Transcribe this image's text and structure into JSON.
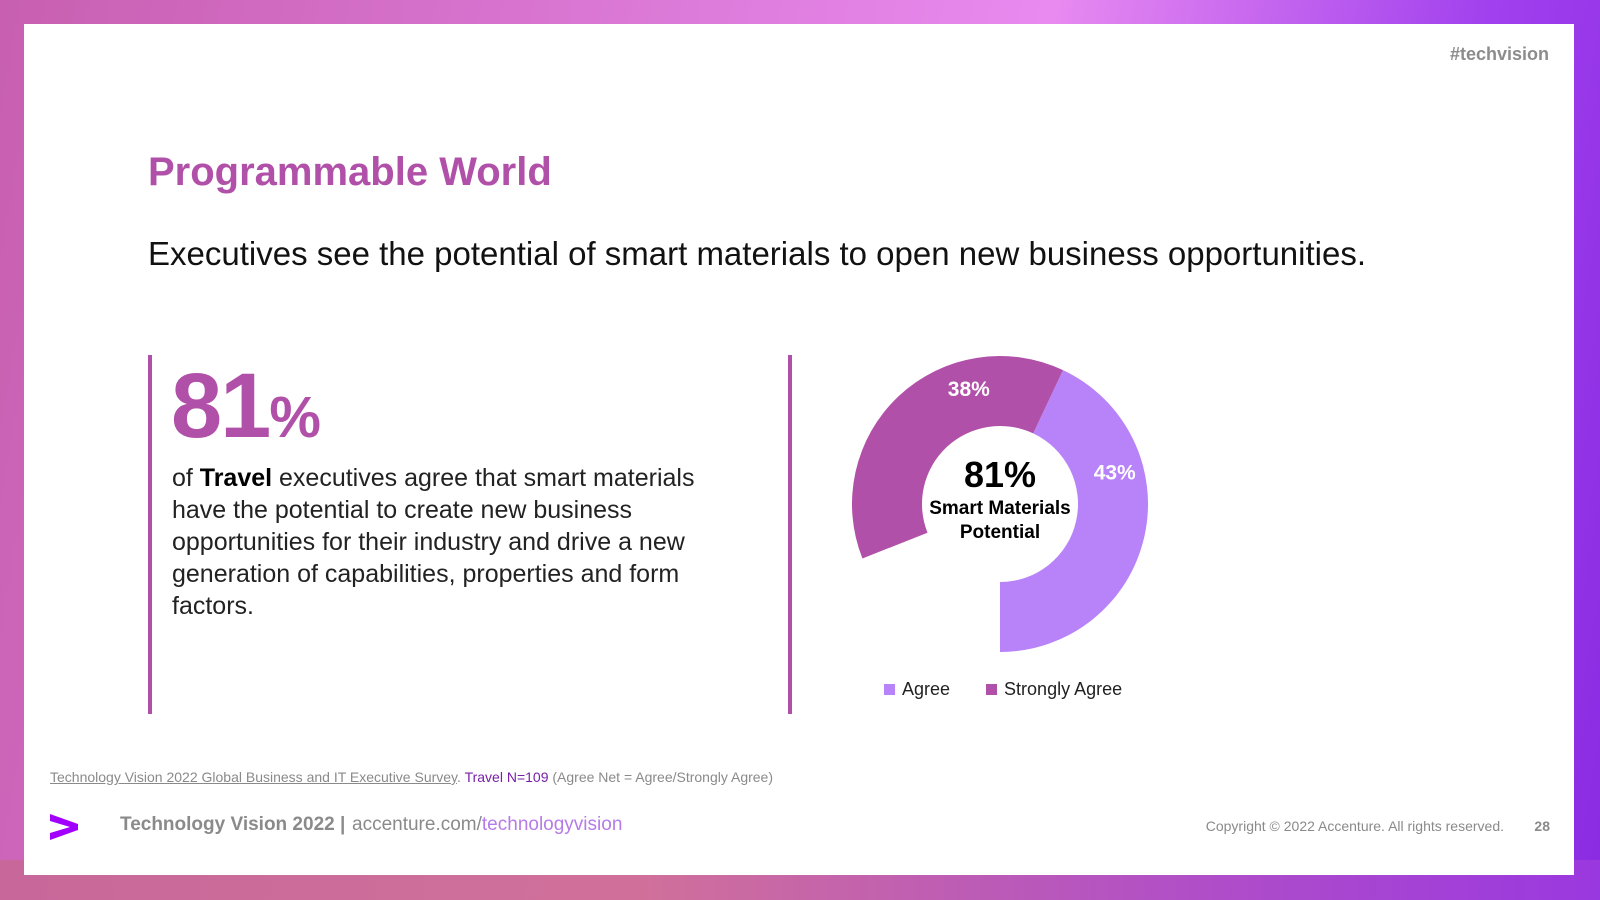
{
  "header": {
    "hashtag": "#techvision"
  },
  "title": "Programmable World",
  "subtitle": "Executives see the potential of smart materials to open new business opportunities.",
  "stat": {
    "value": "81",
    "unit": "%",
    "text_prefix": "of ",
    "industry": "Travel",
    "text_rest": " executives agree that smart materials have the potential to create new business opportunities for their industry and drive a new generation of capabilities, properties and form factors."
  },
  "chart_data": {
    "type": "pie",
    "donut": true,
    "center_value": "81%",
    "center_label_line1": "Smart Materials",
    "center_label_line2": "Potential",
    "start_angle_deg": 180,
    "slices": [
      {
        "name": "Agree",
        "value": 43,
        "label": "43%",
        "color": "#b882f8"
      },
      {
        "name": "Strongly Agree",
        "value": 38,
        "label": "38%",
        "color": "#b150a8"
      }
    ],
    "legend": [
      {
        "name": "Agree",
        "color": "#b882f8"
      },
      {
        "name": "Strongly Agree",
        "color": "#b150a8"
      }
    ]
  },
  "source": {
    "survey": "Technology Vision 2022 Global Business and IT Executive Survey",
    "separator": ". ",
    "sample": "Travel N=109",
    "note": " (Agree Net = Agree/Strongly Agree)"
  },
  "footer": {
    "logo_icon": "accenture-chevron-icon",
    "brand": "Technology Vision 2022 |",
    "url_domain": "accenture.com/",
    "url_path": "technologyvision",
    "copyright": "Copyright © 2022 Accenture. All rights reserved.",
    "page": "28"
  },
  "colors": {
    "accent": "#b150a8",
    "light_accent": "#b882f8",
    "link_purple": "#7a1ea8"
  }
}
